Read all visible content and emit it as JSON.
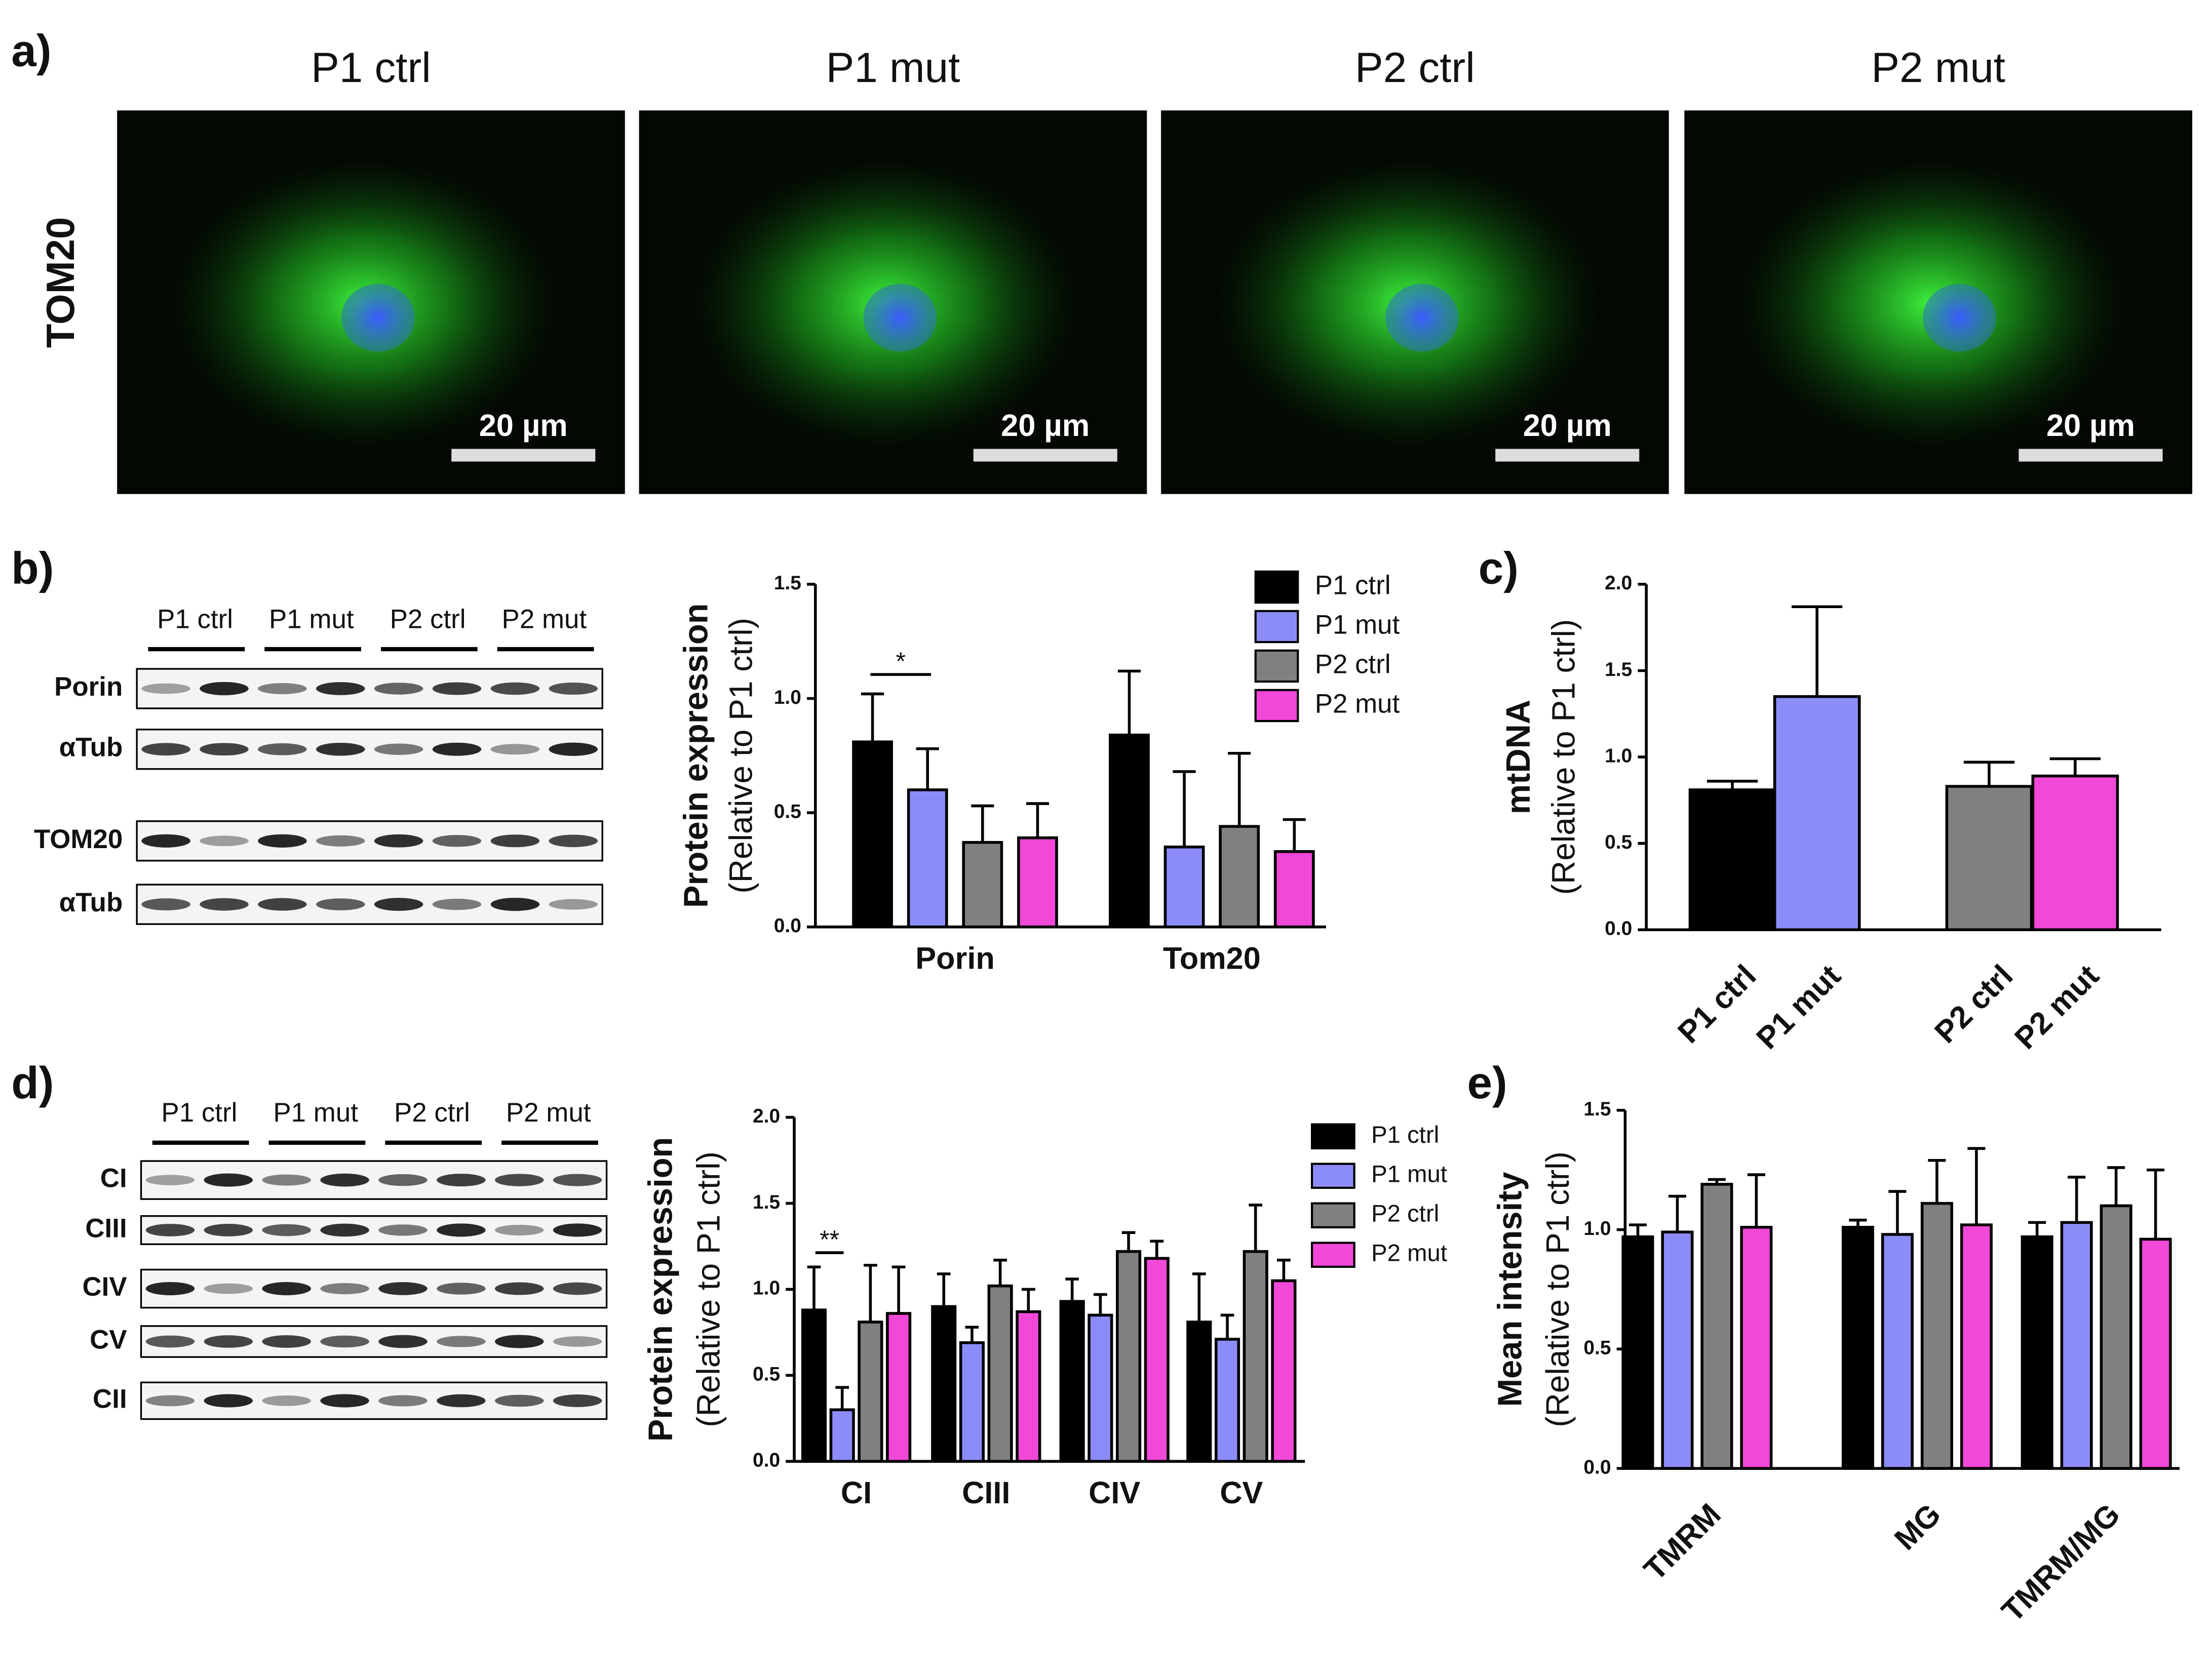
{
  "panel_labels": [
    "a)",
    "b)",
    "c)",
    "d)",
    "e)"
  ],
  "microscopy": {
    "row_label": "TOM20",
    "columns": [
      "P1 ctrl",
      "P1 mut",
      "P2 ctrl",
      "P2 mut"
    ],
    "scale_bar": "20 µm"
  },
  "blots": [
    {
      "lanes": [
        "P1 ctrl",
        "P1 mut",
        "P2 ctrl",
        "P2 mut"
      ],
      "rows": [
        "Porin",
        "αTub",
        "TOM20",
        "αTub"
      ]
    },
    {
      "lanes": [
        "P1 ctrl",
        "P1 mut",
        "P2 ctrl",
        "P2 mut"
      ],
      "rows": [
        "CI",
        "CIII",
        "CIV",
        "CV",
        "CII"
      ]
    }
  ],
  "chart_data": [
    {
      "type": "bar",
      "ylabel": [
        "Protein expression",
        "(Relative to P1 ctrl)"
      ],
      "categories": [
        "Porin",
        "Tom20"
      ],
      "series": [
        {
          "name": "P1 ctrl",
          "color": "#000000",
          "values": [
            0.81,
            0.84
          ],
          "errors": [
            0.21,
            0.28
          ]
        },
        {
          "name": "P1 mut",
          "color": "#8c8cf8",
          "values": [
            0.6,
            0.35
          ],
          "errors": [
            0.18,
            0.33
          ]
        },
        {
          "name": "P2 ctrl",
          "color": "#808080",
          "values": [
            0.37,
            0.44
          ],
          "errors": [
            0.16,
            0.32
          ]
        },
        {
          "name": "P2 mut",
          "color": "#f248d8",
          "values": [
            0.39,
            0.33
          ],
          "errors": [
            0.15,
            0.14
          ]
        }
      ],
      "ylim": [
        0,
        1.5
      ],
      "yticks": [
        {
          "value": 0,
          "label": "0.0"
        },
        {
          "value": 0.5,
          "label": "0.5"
        },
        {
          "value": 1,
          "label": "1.0"
        },
        {
          "value": 1.5,
          "label": "1.5"
        }
      ],
      "annotation": "*",
      "legend": true
    },
    {
      "type": "bar",
      "ylabel": [
        "mtDNA",
        "(Relative to P1 ctrl)"
      ],
      "categories": [
        "P1 ctrl",
        "P1 mut",
        "P2 ctrl",
        "P2 mut"
      ],
      "values": [
        0.81,
        1.35,
        0.83,
        0.89
      ],
      "errors": [
        0.05,
        0.52,
        0.14,
        0.1
      ],
      "colors": [
        "#000000",
        "#8c8cf8",
        "#808080",
        "#f248d8"
      ],
      "ylim": [
        0,
        2
      ],
      "yticks": [
        {
          "value": 0,
          "label": "0.0"
        },
        {
          "value": 0.5,
          "label": "0.5"
        },
        {
          "value": 1,
          "label": "1.0"
        },
        {
          "value": 1.5,
          "label": "1.5"
        },
        {
          "value": 2,
          "label": "2.0"
        }
      ]
    },
    {
      "type": "bar",
      "ylabel": [
        "Protein expression",
        "(Relative to P1 ctrl)"
      ],
      "categories": [
        "CI",
        "CIII",
        "CIV",
        "CV"
      ],
      "series": [
        {
          "name": "P1 ctrl",
          "color": "#000000",
          "values": [
            0.88,
            0.9,
            0.93,
            0.81
          ],
          "errors": [
            0.25,
            0.19,
            0.13,
            0.28
          ]
        },
        {
          "name": "P1 mut",
          "color": "#8c8cf8",
          "values": [
            0.3,
            0.69,
            0.85,
            0.71
          ],
          "errors": [
            0.13,
            0.09,
            0.12,
            0.14
          ]
        },
        {
          "name": "P2 ctrl",
          "color": "#808080",
          "values": [
            0.81,
            1.02,
            1.22,
            1.22
          ],
          "errors": [
            0.33,
            0.15,
            0.11,
            0.27
          ]
        },
        {
          "name": "P2 mut",
          "color": "#f248d8",
          "values": [
            0.86,
            0.87,
            1.18,
            1.05
          ],
          "errors": [
            0.27,
            0.13,
            0.1,
            0.12
          ]
        }
      ],
      "ylim": [
        0,
        2
      ],
      "yticks": [
        {
          "value": 0,
          "label": "0.0"
        },
        {
          "value": 0.5,
          "label": "0.5"
        },
        {
          "value": 1,
          "label": "1.0"
        },
        {
          "value": 1.5,
          "label": "1.5"
        },
        {
          "value": 2,
          "label": "2.0"
        }
      ],
      "annotation": "**",
      "legend": true
    },
    {
      "type": "bar",
      "ylabel": [
        "Mean intensity",
        "(Relative to P1 ctrl)"
      ],
      "categories": [
        "TMRM",
        "MG",
        "TMRM/MG"
      ],
      "series": [
        {
          "name": "P1 ctrl",
          "color": "#000000",
          "values": [
            0.97,
            1.01,
            0.97
          ],
          "errors": [
            0.05,
            0.03,
            0.06
          ]
        },
        {
          "name": "P1 mut",
          "color": "#8c8cf8",
          "values": [
            0.99,
            0.98,
            1.03
          ],
          "errors": [
            0.15,
            0.18,
            0.19
          ]
        },
        {
          "name": "P2 ctrl",
          "color": "#808080",
          "values": [
            1.19,
            1.11,
            1.1
          ],
          "errors": [
            0.02,
            0.18,
            0.16
          ]
        },
        {
          "name": "P2 mut",
          "color": "#f248d8",
          "values": [
            1.01,
            1.02,
            0.96
          ],
          "errors": [
            0.22,
            0.32,
            0.29
          ]
        }
      ],
      "ylim": [
        0,
        1.5
      ],
      "yticks": [
        {
          "value": 0,
          "label": "0.0"
        },
        {
          "value": 0.5,
          "label": "0.5"
        },
        {
          "value": 1,
          "label": "1.0"
        },
        {
          "value": 1.5,
          "label": "1.5"
        }
      ]
    }
  ]
}
